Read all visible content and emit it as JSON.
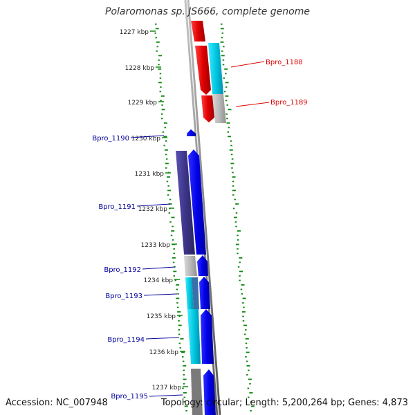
{
  "header": {
    "title": "Polaromonas sp. JS666, complete genome"
  },
  "footer": {
    "accession": "Accession: NC_007948",
    "topology": "Topology: circular; Length: 5,200,264 bp; Genes: 4,873"
  },
  "scale_labels": [
    "1227 kbp",
    "1228 kbp",
    "1229 kbp",
    "1230 kbp",
    "1231 kbp",
    "1232 kbp",
    "1233 kbp",
    "1234 kbp",
    "1235 kbp",
    "1236 kbp",
    "1237 kbp"
  ],
  "genes": [
    {
      "id": "Bpro_1188",
      "label": "Bpro_1188",
      "label_color": "#dd0000"
    },
    {
      "id": "Bpro_1189",
      "label": "Bpro_1189",
      "label_color": "#dd0000"
    },
    {
      "id": "Bpro_1190",
      "label": "Bpro_1190",
      "label_color": "#000099"
    },
    {
      "id": "Bpro_1191",
      "label": "Bpro_1191",
      "label_color": "#000099"
    },
    {
      "id": "Bpro_1192",
      "label": "Bpro_1192",
      "label_color": "#000099"
    },
    {
      "id": "Bpro_1193",
      "label": "Bpro_1193",
      "label_color": "#000099"
    },
    {
      "id": "Bpro_1194",
      "label": "Bpro_1194",
      "label_color": "#000099"
    },
    {
      "id": "Bpro_1195",
      "label": "Bpro_1195",
      "label_color": "#000099"
    }
  ],
  "colors": {
    "forward_strand": "#dd0000",
    "reverse_strand": "#0000ee",
    "cyan": "#00c8e0",
    "cog_gray": "#b8b8b8",
    "cog_purple": "#3c3488",
    "backbone": "#8a8a8a",
    "gc_dots": "#118811"
  }
}
